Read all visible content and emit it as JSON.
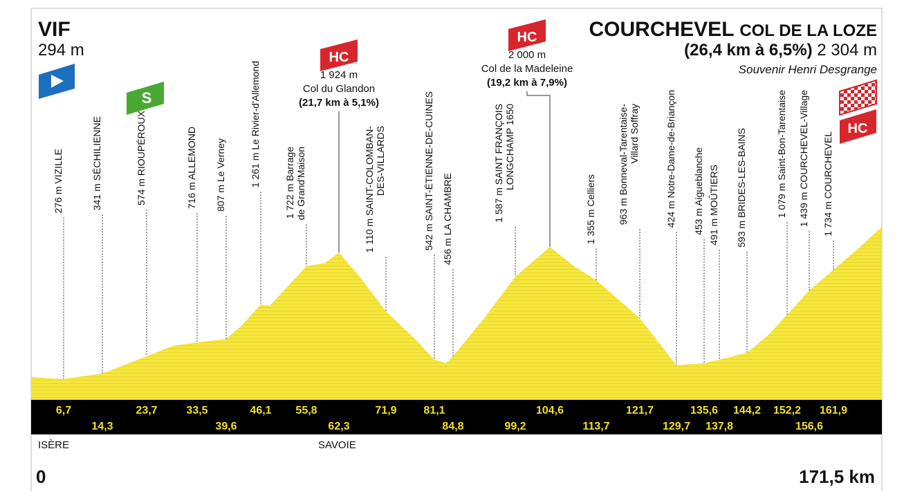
{
  "header": {
    "start": {
      "name": "VIF",
      "altitude": "294 m"
    },
    "finish": {
      "name": "COURCHEVEL",
      "subtitle": "COL DE LA LOZE",
      "climb": "(26,4 km à 6,5%)",
      "altitude": "2 304 m",
      "souvenir": "Souvenir Henri Desgrange",
      "category": "HC"
    }
  },
  "sprint": "S",
  "climbs": [
    {
      "category": "HC",
      "altitude": "1 924 m",
      "name": "Col du Glandon",
      "stats": "(21,7 km à 5,1%)"
    },
    {
      "category": "HC",
      "altitude": "2 000 m",
      "name": "Col de la Madeleine",
      "stats": "(19,2 km à 7,9%)"
    }
  ],
  "waypoints": [
    {
      "label": [
        "276 m VIZILLE"
      ],
      "km": "6,7"
    },
    {
      "label": [
        "341 m SÉCHILIENNE"
      ],
      "km": "14,3"
    },
    {
      "label": [
        "574 m RIOUPÉROUX"
      ],
      "km": "23,7"
    },
    {
      "label": [
        "716 m ALLEMOND"
      ],
      "km": "33,5"
    },
    {
      "label": [
        "807 m Le Verney"
      ],
      "km": "39,6"
    },
    {
      "label": [
        "1 261 m Le Rivier-d'Allemond"
      ],
      "km": "46,1"
    },
    {
      "label": [
        "1 722 m Barrage",
        "de Grand'Maison"
      ],
      "km": "55,8"
    },
    {
      "label": [],
      "km": "62,3"
    },
    {
      "label": [
        "1 110 m SAINT-COLOMBAN-",
        "DES-VILLARDS"
      ],
      "km": "71,9"
    },
    {
      "label": [
        "542 m SAINT-ÉTIENNE-DE-CUINES"
      ],
      "km": "81,1"
    },
    {
      "label": [
        "456 m LA CHAMBRE"
      ],
      "km": "84,8"
    },
    {
      "label": [
        "1 587 m SAINT FRANÇOIS",
        "LONGCHAMP 1650"
      ],
      "km": "99,2"
    },
    {
      "label": [],
      "km": "104,6"
    },
    {
      "label": [
        "1 355 m Celliers"
      ],
      "km": "113,7"
    },
    {
      "label": [
        "963 m Bonneval-Tarentaise-",
        "Villard Soffray"
      ],
      "km": "121,7"
    },
    {
      "label": [
        "424 m Notre-Dame-de-Briançon"
      ],
      "km": "129,7"
    },
    {
      "label": [
        "453 m Aigueblanche"
      ],
      "km": "135,6"
    },
    {
      "label": [
        "491 m MOÛTIERS"
      ],
      "km": "137,8"
    },
    {
      "label": [
        "593 m BRIDES-LES-BAINS"
      ],
      "km": "144,2"
    },
    {
      "label": [
        "1 079 m Saint-Bon-Tarentaise"
      ],
      "km": "152,2"
    },
    {
      "label": [
        "1 439 m COURCHEVEL-Village"
      ],
      "km": "156,6"
    },
    {
      "label": [
        "1 734 m COURCHEVEL"
      ],
      "km": "161,9"
    }
  ],
  "regions": [
    "ISÈRE",
    "SAVOIE"
  ],
  "distance": {
    "start": "0",
    "end": "171,5 km"
  }
}
